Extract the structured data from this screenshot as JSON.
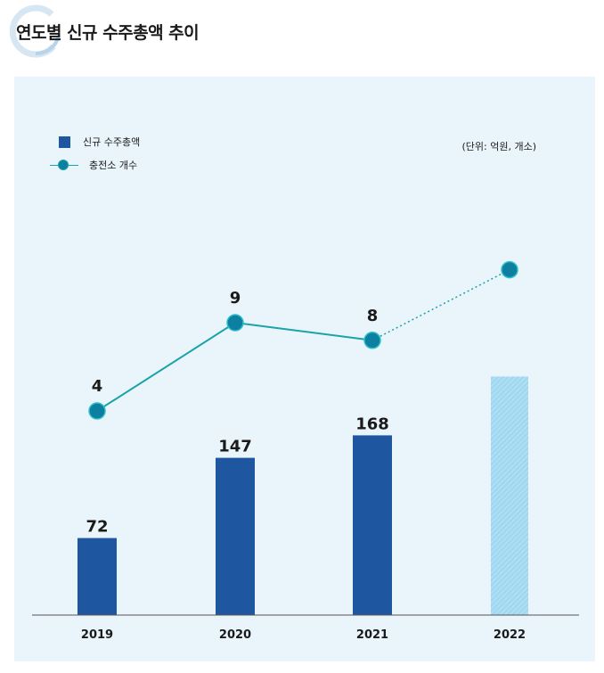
{
  "header": {
    "title": "연도별 신규 수주총액 추이"
  },
  "unit_label": "(단위: 억원, 개소)",
  "colors": {
    "bar": "#1e56a0",
    "bar_projected": "#9fd8f0",
    "line": "#1aa3a8",
    "marker": "#0d7fa0",
    "panel": "#eaf4fb"
  },
  "chart_data": {
    "type": "bar",
    "categories": [
      "2019",
      "2020",
      "2021",
      "2022"
    ],
    "series": [
      {
        "name": "신규 수주총액",
        "kind": "bar",
        "values": [
          72,
          147,
          168,
          null
        ],
        "labels": [
          "72",
          "147",
          "168",
          ""
        ],
        "projected_bar_value": 223
      },
      {
        "name": "충전소 개수",
        "kind": "line",
        "values": [
          4,
          9,
          8,
          12
        ],
        "labels": [
          "4",
          "9",
          "8",
          ""
        ],
        "dotted_segment_from_index": 2
      }
    ],
    "legend": [
      "신규 수주총액",
      "충전소 개수"
    ],
    "legend_position": "top-left",
    "grid": false
  }
}
